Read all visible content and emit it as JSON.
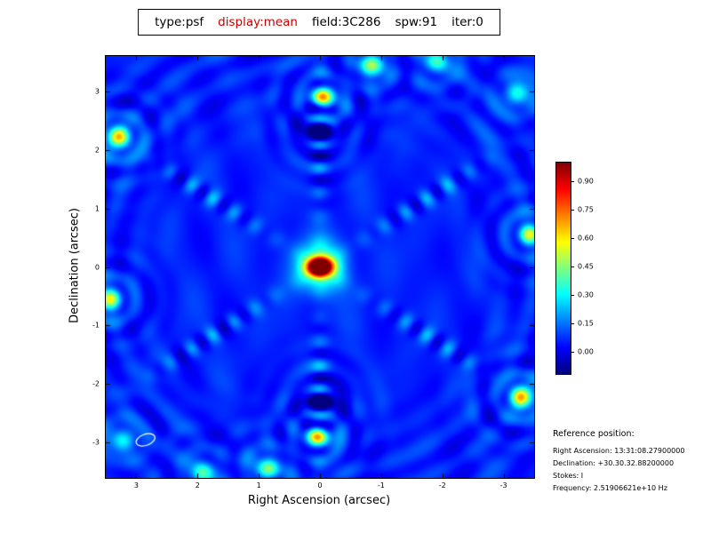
{
  "title": {
    "parts": [
      {
        "text": "type:psf",
        "color": "#000000"
      },
      {
        "text": "display:mean",
        "color": "#cc0000"
      },
      {
        "text": "field:3C286",
        "color": "#000000"
      },
      {
        "text": "spw:91",
        "color": "#000000"
      },
      {
        "text": "iter:0",
        "color": "#000000"
      }
    ]
  },
  "axes": {
    "xlabel": "Right Ascension (arcsec)",
    "ylabel": "Declination (arcsec)",
    "x_ticks": [
      3,
      2,
      1,
      0,
      -1,
      -2,
      -3
    ],
    "y_ticks": [
      -3,
      -2,
      -1,
      0,
      1,
      2,
      3
    ],
    "x_range": [
      3.5,
      -3.5
    ],
    "y_range": [
      -3.6,
      3.6
    ]
  },
  "colorbar": {
    "colormap": "jet",
    "vmin": -0.12,
    "vmax": 1.0,
    "ticks": [
      "0.90",
      "0.75",
      "0.60",
      "0.45",
      "0.30",
      "0.15",
      "0.00"
    ]
  },
  "reference": {
    "heading": "Reference position:",
    "lines": [
      "Right Ascension: 13:31:08.27900000",
      "Declination: +30.30.32.88200000",
      "Stokes: I",
      "Frequency: 2.51906621e+10 Hz"
    ]
  },
  "chart_data": {
    "type": "heatmap",
    "title": "type:psf display:mean field:3C286 spw:91 iter:0",
    "xlabel": "Right Ascension (arcsec)",
    "ylabel": "Declination (arcsec)",
    "x_range": [
      3.5,
      -3.5
    ],
    "y_range": [
      -3.6,
      3.6
    ],
    "colormap": "jet",
    "value_range": [
      -0.12,
      1.0
    ],
    "peak": {
      "ra_arcsec": 0.0,
      "dec_arcsec": 0.0,
      "value": 1.0
    },
    "beam_ellipse": {
      "x": 2.85,
      "y": -2.95,
      "rx": 0.16,
      "ry": 0.095,
      "angle_deg": -20,
      "color": "#ffffff"
    },
    "psf_model": {
      "base": 0.055,
      "arm_angles_deg": [
        90,
        33.7,
        146.3
      ],
      "arm_width": 0.11,
      "arm_spacing": 0.42,
      "arm_amp": 0.17,
      "peak_sigma": [
        0.16,
        0.115
      ],
      "halo_amp": 0.3,
      "halo_sigma": 0.3,
      "sidelobes": [
        {
          "u": 0.05,
          "v": 2.88,
          "amp": 0.45,
          "sig": 0.14
        },
        {
          "u": 0.0,
          "v": 2.32,
          "amp": -0.32,
          "sig": 0.16
        },
        {
          "u": -3.28,
          "v": 2.22,
          "amp": 0.48,
          "sig": 0.16
        },
        {
          "u": 3.42,
          "v": 0.55,
          "amp": 0.4,
          "sig": 0.14
        },
        {
          "u": 0.85,
          "v": 3.45,
          "amp": 0.32,
          "sig": 0.16
        },
        {
          "u": 3.2,
          "v": 2.95,
          "amp": 0.22,
          "sig": 0.2
        },
        {
          "u": -1.9,
          "v": -3.5,
          "amp": 0.25,
          "sig": 0.18
        }
      ]
    }
  }
}
